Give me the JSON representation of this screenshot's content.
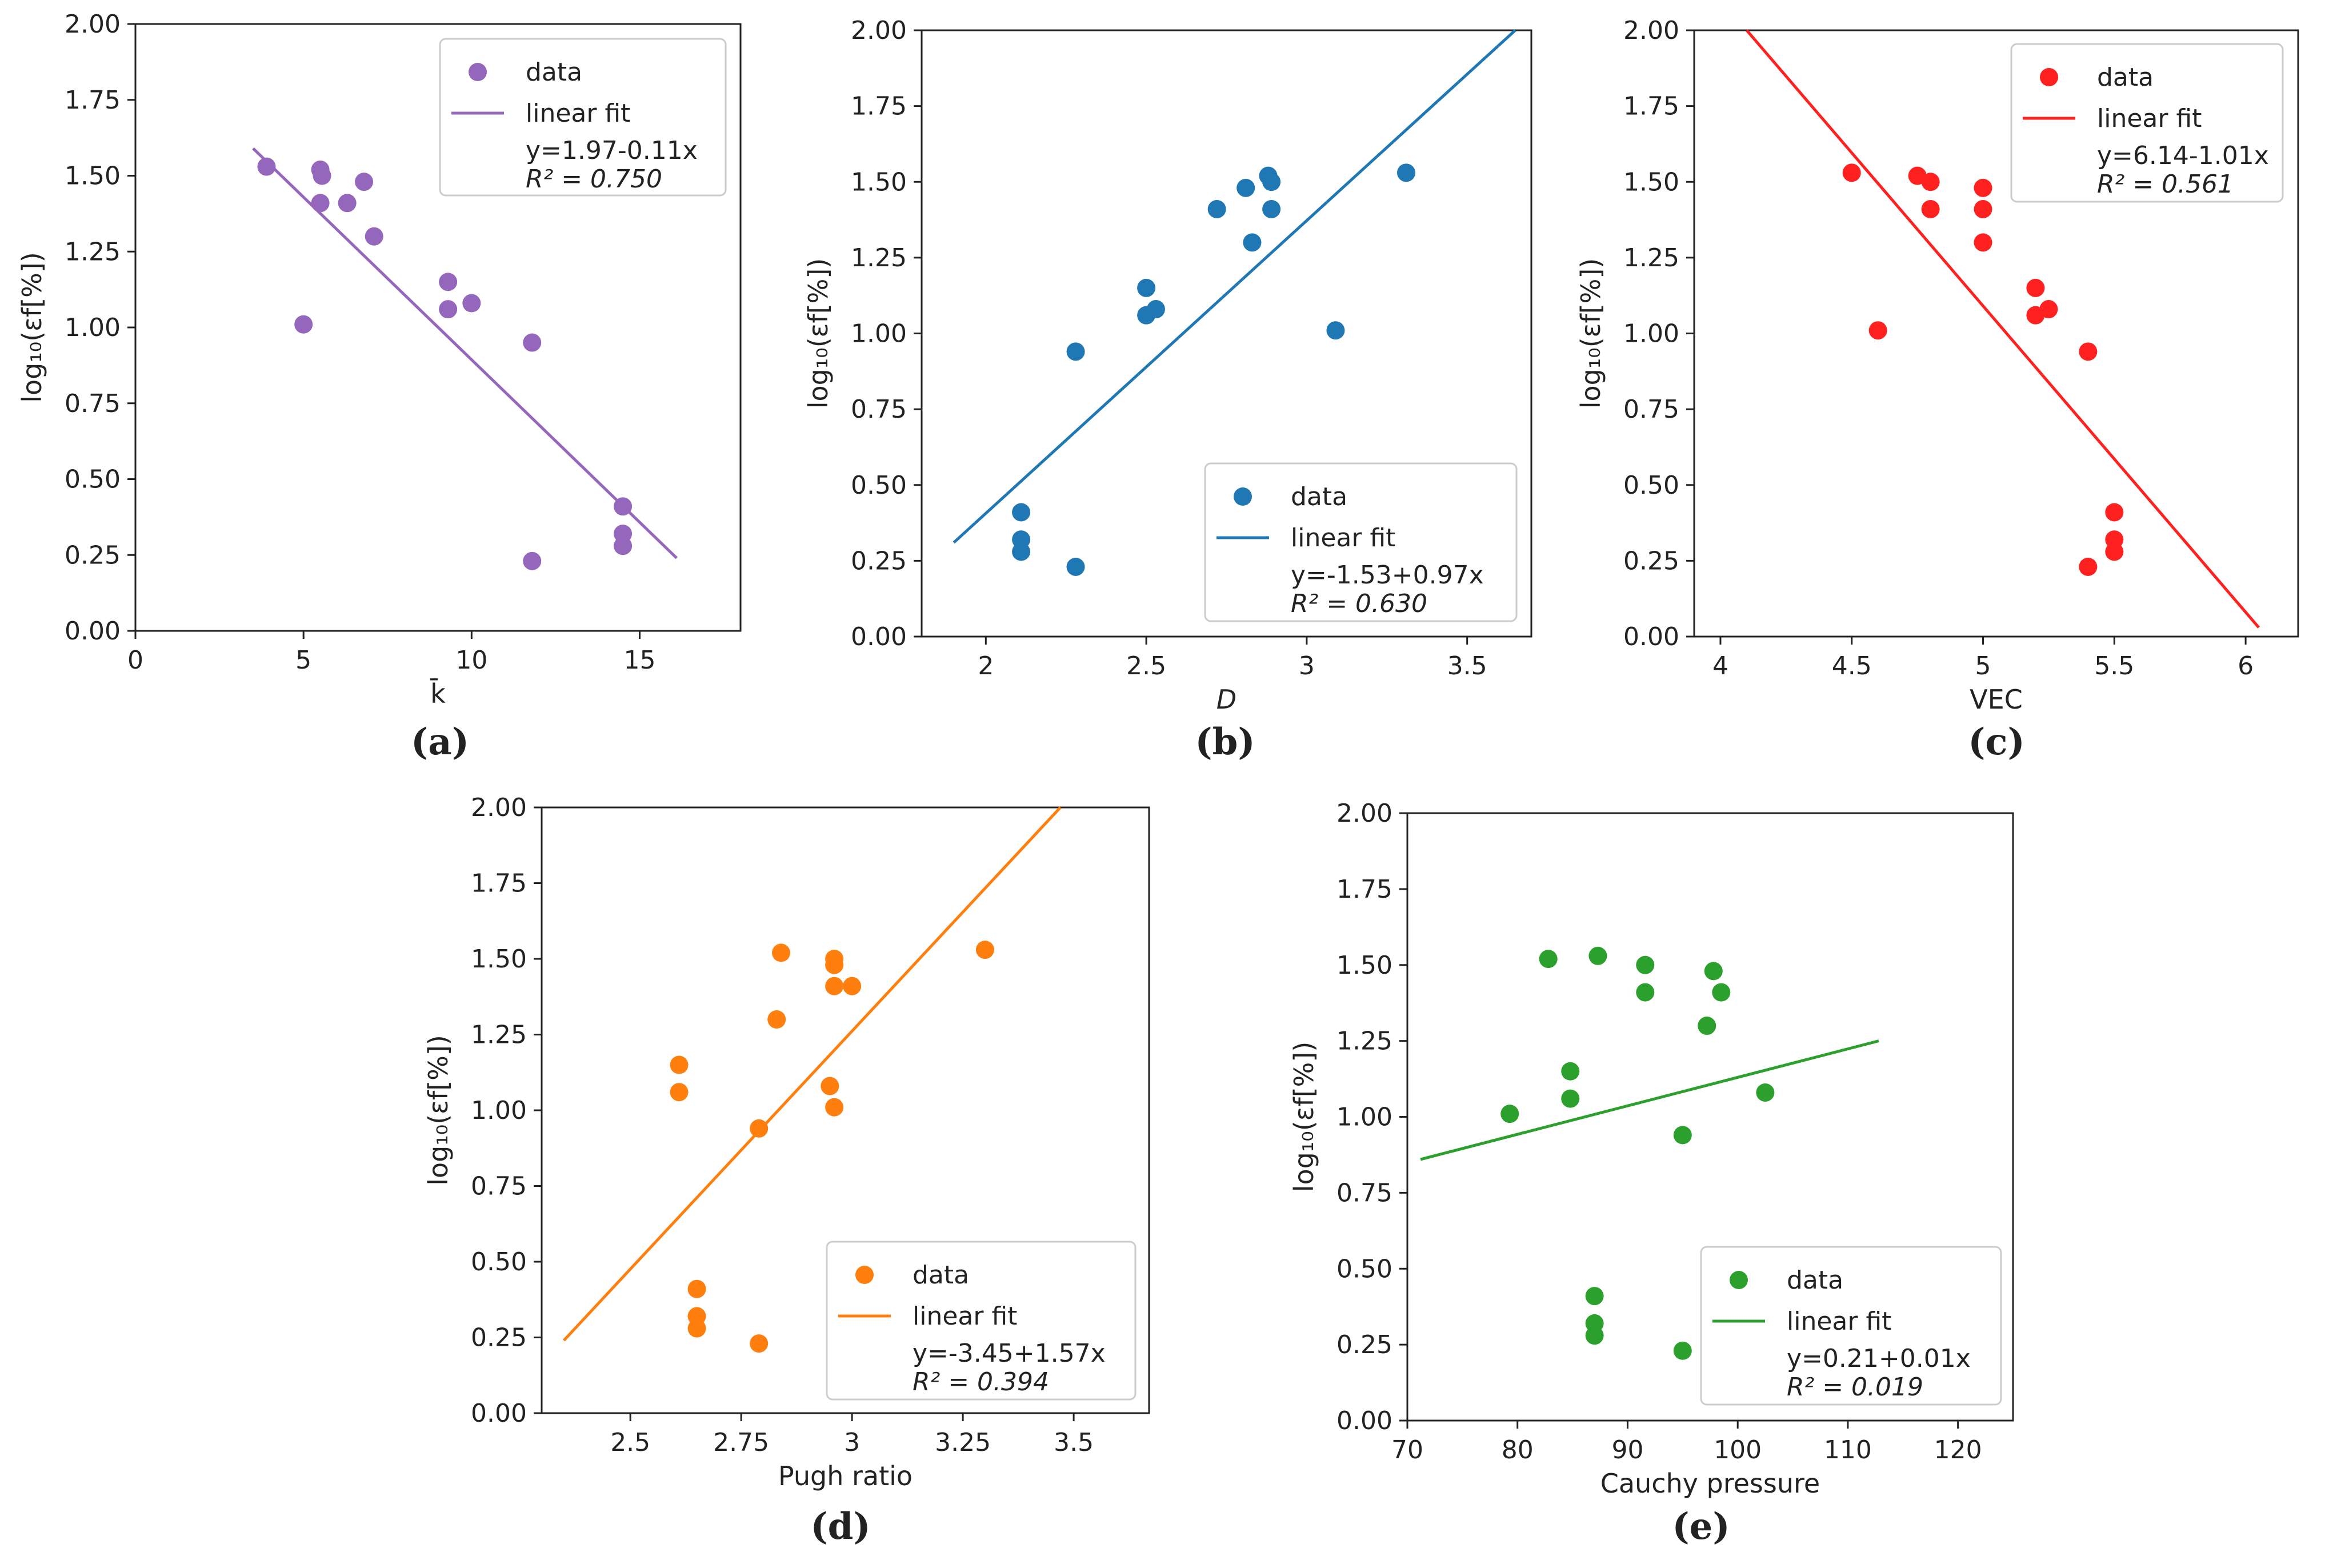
{
  "chart_data": [
    {
      "type": "scatter",
      "panel": "(a)",
      "color": "#9467bd",
      "xlabel": "k̄",
      "ylabel": "log₁₀(εf[%])",
      "xlim": [
        0,
        18
      ],
      "ylim": [
        0,
        2
      ],
      "xticks": [
        0,
        5,
        10,
        15
      ],
      "yticks": [
        0.0,
        0.25,
        0.5,
        0.75,
        1.0,
        1.25,
        1.5,
        1.75,
        2.0
      ],
      "series": [
        {
          "name": "data",
          "points": [
            [
              3.9,
              1.53
            ],
            [
              5.0,
              1.01
            ],
            [
              5.5,
              1.52
            ],
            [
              5.55,
              1.5
            ],
            [
              5.5,
              1.41
            ],
            [
              6.3,
              1.41
            ],
            [
              6.8,
              1.48
            ],
            [
              7.1,
              1.3
            ],
            [
              9.3,
              1.15
            ],
            [
              9.3,
              1.06
            ],
            [
              10.0,
              1.08
            ],
            [
              11.8,
              0.95
            ],
            [
              11.8,
              0.23
            ],
            [
              14.5,
              0.41
            ],
            [
              14.5,
              0.32
            ],
            [
              14.5,
              0.28
            ]
          ]
        },
        {
          "name": "linear fit",
          "line": [
            [
              3.5,
              1.59
            ],
            [
              16.1,
              0.24
            ]
          ]
        }
      ],
      "legend": {
        "position": "top-right",
        "entries": [
          "data",
          "linear fit"
        ],
        "equation": "y=1.97-0.11x",
        "r2": "R² = 0.750"
      }
    },
    {
      "type": "scatter",
      "panel": "(b)",
      "color": "#1f77b4",
      "xlabel": "D",
      "ylabel": "log₁₀(εf[%])",
      "xlim": [
        1.8,
        3.7
      ],
      "ylim": [
        0,
        2
      ],
      "xticks": [
        2.0,
        2.5,
        3.0,
        3.5
      ],
      "yticks": [
        0.0,
        0.25,
        0.5,
        0.75,
        1.0,
        1.25,
        1.5,
        1.75,
        2.0
      ],
      "series": [
        {
          "name": "data",
          "points": [
            [
              2.11,
              0.41
            ],
            [
              2.11,
              0.32
            ],
            [
              2.11,
              0.28
            ],
            [
              2.28,
              0.94
            ],
            [
              2.28,
              0.23
            ],
            [
              2.5,
              1.15
            ],
            [
              2.5,
              1.06
            ],
            [
              2.53,
              1.08
            ],
            [
              2.72,
              1.41
            ],
            [
              2.81,
              1.48
            ],
            [
              2.83,
              1.3
            ],
            [
              2.88,
              1.52
            ],
            [
              2.89,
              1.5
            ],
            [
              2.89,
              1.41
            ],
            [
              3.09,
              1.01
            ],
            [
              3.31,
              1.53
            ]
          ]
        },
        {
          "name": "linear fit",
          "line": [
            [
              1.9,
              0.31
            ],
            [
              3.65,
              2.0
            ]
          ]
        }
      ],
      "legend": {
        "position": "lower-right",
        "entries": [
          "data",
          "linear fit"
        ],
        "equation": "y=-1.53+0.97x",
        "r2": "R² = 0.630"
      }
    },
    {
      "type": "scatter",
      "panel": "(c)",
      "color": "#ff2020",
      "xlabel": "VEC",
      "ylabel": "log₁₀(εf[%])",
      "xlim": [
        3.9,
        6.2
      ],
      "ylim": [
        0,
        2
      ],
      "xticks": [
        4.0,
        4.5,
        5.0,
        5.5,
        6.0
      ],
      "yticks": [
        0.0,
        0.25,
        0.5,
        0.75,
        1.0,
        1.25,
        1.5,
        1.75,
        2.0
      ],
      "series": [
        {
          "name": "data",
          "points": [
            [
              4.5,
              1.53
            ],
            [
              4.6,
              1.01
            ],
            [
              4.75,
              1.52
            ],
            [
              4.8,
              1.5
            ],
            [
              4.8,
              1.41
            ],
            [
              5.0,
              1.48
            ],
            [
              5.0,
              1.41
            ],
            [
              5.0,
              1.3
            ],
            [
              5.2,
              1.15
            ],
            [
              5.2,
              1.06
            ],
            [
              5.25,
              1.08
            ],
            [
              5.4,
              0.94
            ],
            [
              5.4,
              0.23
            ],
            [
              5.5,
              0.41
            ],
            [
              5.5,
              0.32
            ],
            [
              5.5,
              0.28
            ]
          ]
        },
        {
          "name": "linear fit",
          "line": [
            [
              4.1,
              2.0
            ],
            [
              6.05,
              0.03
            ]
          ]
        }
      ],
      "legend": {
        "position": "top-right",
        "entries": [
          "data",
          "linear fit"
        ],
        "equation": "y=6.14-1.01x",
        "r2": "R² = 0.561"
      }
    },
    {
      "type": "scatter",
      "panel": "(d)",
      "color": "#ff7f0e",
      "xlabel": "Pugh ratio",
      "ylabel": "log₁₀(εf[%])",
      "xlim": [
        2.3,
        3.67
      ],
      "ylim": [
        0,
        2
      ],
      "xticks": [
        2.5,
        2.75,
        3.0,
        3.25,
        3.5
      ],
      "yticks": [
        0.0,
        0.25,
        0.5,
        0.75,
        1.0,
        1.25,
        1.5,
        1.75,
        2.0
      ],
      "series": [
        {
          "name": "data",
          "points": [
            [
              2.61,
              1.15
            ],
            [
              2.61,
              1.06
            ],
            [
              2.65,
              0.41
            ],
            [
              2.65,
              0.32
            ],
            [
              2.65,
              0.28
            ],
            [
              2.79,
              0.94
            ],
            [
              2.79,
              0.23
            ],
            [
              2.83,
              1.3
            ],
            [
              2.84,
              1.52
            ],
            [
              2.95,
              1.08
            ],
            [
              2.96,
              1.5
            ],
            [
              2.96,
              1.48
            ],
            [
              2.96,
              1.41
            ],
            [
              2.96,
              1.01
            ],
            [
              3.0,
              1.41
            ],
            [
              3.3,
              1.53
            ]
          ]
        },
        {
          "name": "linear fit",
          "line": [
            [
              2.35,
              0.24
            ],
            [
              3.47,
              2.0
            ]
          ]
        }
      ],
      "legend": {
        "position": "lower-right",
        "entries": [
          "data",
          "linear fit"
        ],
        "equation": "y=-3.45+1.57x",
        "r2": "R² = 0.394"
      }
    },
    {
      "type": "scatter",
      "panel": "(e)",
      "color": "#2ca02c",
      "xlabel": "Cauchy pressure",
      "ylabel": "log₁₀(εf[%])",
      "xlim": [
        70,
        125
      ],
      "ylim": [
        0,
        2
      ],
      "xticks": [
        70,
        80,
        90,
        100,
        110,
        120
      ],
      "yticks": [
        0.0,
        0.25,
        0.5,
        0.75,
        1.0,
        1.25,
        1.5,
        1.75,
        2.0
      ],
      "series": [
        {
          "name": "data",
          "points": [
            [
              79.3,
              1.01
            ],
            [
              82.8,
              1.52
            ],
            [
              84.8,
              1.15
            ],
            [
              84.8,
              1.06
            ],
            [
              87.0,
              0.41
            ],
            [
              87.0,
              0.32
            ],
            [
              87.0,
              0.28
            ],
            [
              87.3,
              1.53
            ],
            [
              91.6,
              1.5
            ],
            [
              91.6,
              1.41
            ],
            [
              95.0,
              0.94
            ],
            [
              95.0,
              0.23
            ],
            [
              97.2,
              1.3
            ],
            [
              97.8,
              1.48
            ],
            [
              98.5,
              1.41
            ],
            [
              102.5,
              1.08
            ]
          ]
        },
        {
          "name": "linear fit",
          "line": [
            [
              71.2,
              0.86
            ],
            [
              112.8,
              1.25
            ]
          ]
        }
      ],
      "legend": {
        "position": "lower-right",
        "entries": [
          "data",
          "linear fit"
        ],
        "equation": "y=0.21+0.01x",
        "r2": "R² = 0.019"
      }
    }
  ]
}
